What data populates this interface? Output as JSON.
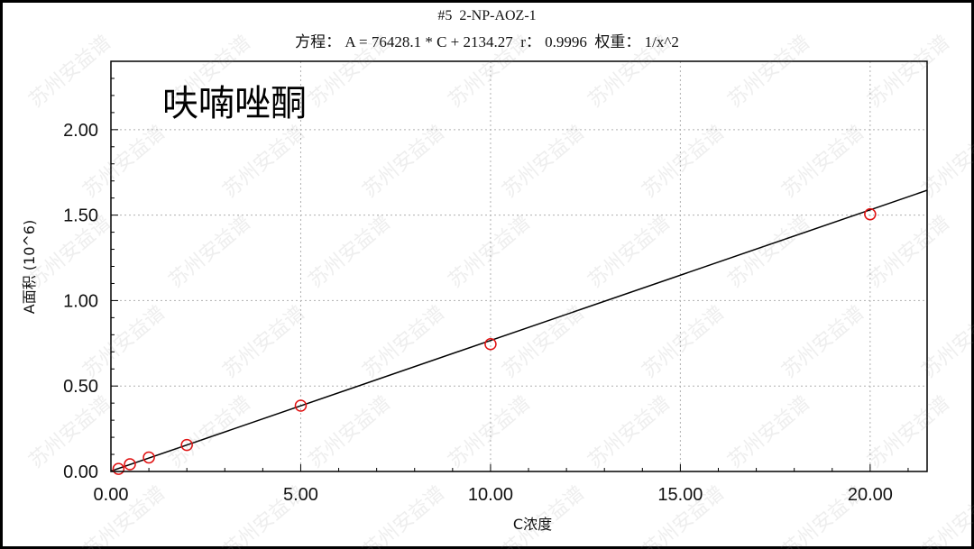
{
  "chart_data": {
    "type": "scatter",
    "title": "#5  2-NP-AOZ-1",
    "equation": "方程： A = 76428.1 * C + 2134.27  r： 0.9996  权重： 1/x^2",
    "annotation": "呋喃唑酮",
    "xlabel": "C浓度",
    "ylabel": "A面积 (10^6)",
    "xlim": [
      0,
      21.5
    ],
    "ylim": [
      0,
      2.4
    ],
    "x_ticks": [
      0,
      5,
      10,
      15,
      20
    ],
    "x_tick_labels": [
      "0.00",
      "5.00",
      "10.00",
      "15.00",
      "20.00"
    ],
    "y_ticks": [
      0,
      0.5,
      1.0,
      1.5,
      2.0
    ],
    "y_tick_labels": [
      "0.00",
      "0.50",
      "1.00",
      "1.50",
      "2.00"
    ],
    "grid": true,
    "series": [
      {
        "x": [
          0.2,
          0.5,
          1.0,
          2.0,
          5.0,
          10.0,
          20.0
        ],
        "y": [
          0.015,
          0.042,
          0.082,
          0.155,
          0.385,
          0.745,
          1.505
        ],
        "marker": "open-circle",
        "color": "#e01010"
      }
    ],
    "fit_line": {
      "slope_per_million": 0.0764281,
      "intercept_per_million": 0.00213427,
      "color": "#000000"
    }
  },
  "watermark": {
    "text": "苏州安益谱",
    "color": "#8a8a8a"
  }
}
